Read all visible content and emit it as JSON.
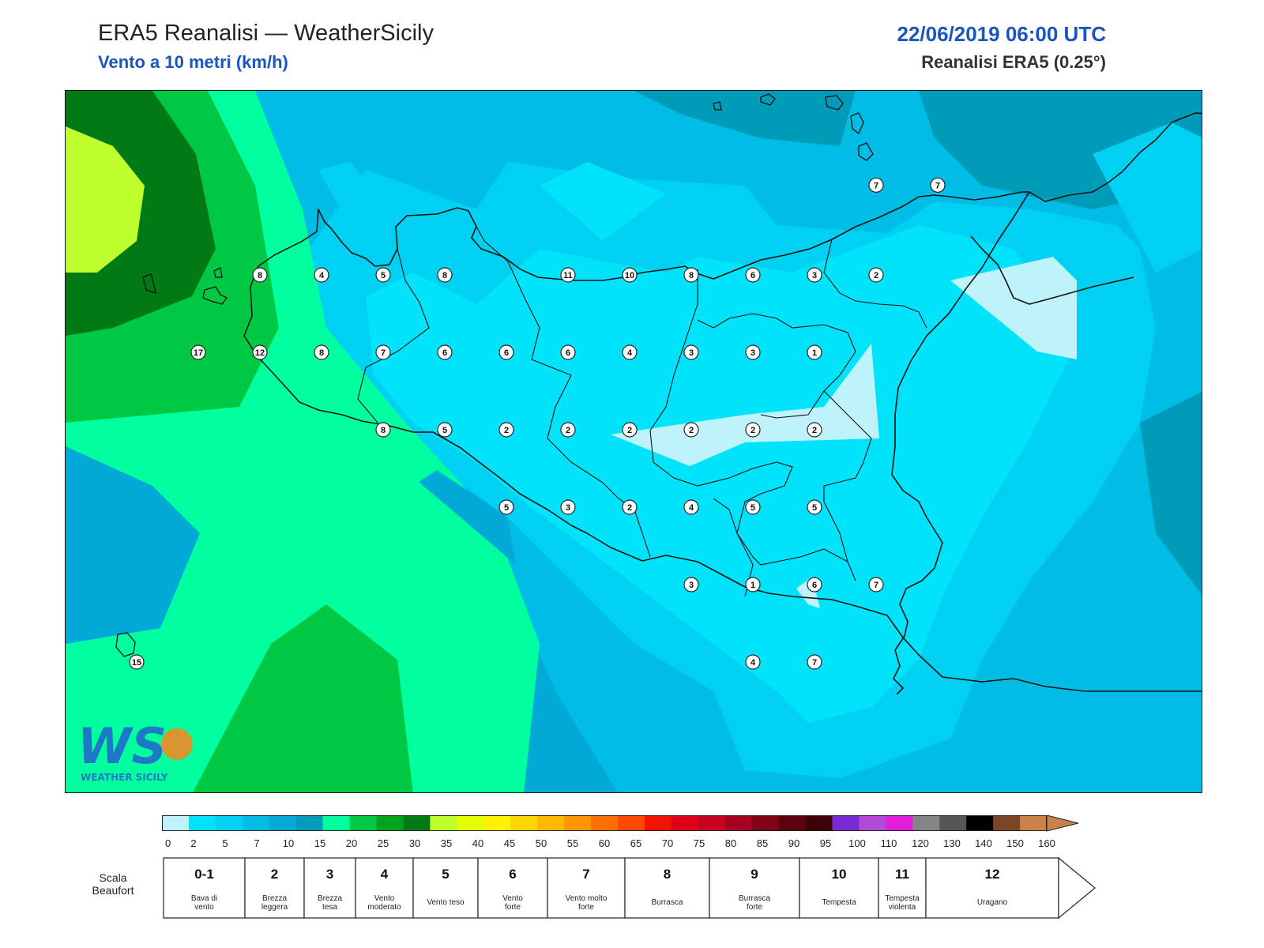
{
  "header": {
    "title": "ERA5 Reanalisi — WeatherSicily",
    "subtitle": "Vento a 10 metri (km/h)",
    "datetime": "22/06/2019 06:00 UTC",
    "source": "Reanalisi ERA5 (0.25°)"
  },
  "stations": [
    {
      "value": "7",
      "lon": 14.98,
      "lat": 38.48
    },
    {
      "value": "7",
      "lon": 15.23,
      "lat": 38.48
    },
    {
      "value": "8",
      "lon": 12.48,
      "lat": 38.19
    },
    {
      "value": "4",
      "lon": 12.73,
      "lat": 38.19
    },
    {
      "value": "5",
      "lon": 12.98,
      "lat": 38.19
    },
    {
      "value": "8",
      "lon": 13.23,
      "lat": 38.19
    },
    {
      "value": "11",
      "lon": 13.73,
      "lat": 38.19
    },
    {
      "value": "10",
      "lon": 13.98,
      "lat": 38.19
    },
    {
      "value": "8",
      "lon": 14.23,
      "lat": 38.19
    },
    {
      "value": "6",
      "lon": 14.48,
      "lat": 38.19
    },
    {
      "value": "3",
      "lon": 14.73,
      "lat": 38.19
    },
    {
      "value": "2",
      "lon": 14.98,
      "lat": 38.19
    },
    {
      "value": "17",
      "lon": 12.23,
      "lat": 37.94
    },
    {
      "value": "12",
      "lon": 12.48,
      "lat": 37.94
    },
    {
      "value": "8",
      "lon": 12.73,
      "lat": 37.94
    },
    {
      "value": "7",
      "lon": 12.98,
      "lat": 37.94
    },
    {
      "value": "6",
      "lon": 13.23,
      "lat": 37.94
    },
    {
      "value": "6",
      "lon": 13.48,
      "lat": 37.94
    },
    {
      "value": "6",
      "lon": 13.73,
      "lat": 37.94
    },
    {
      "value": "4",
      "lon": 13.98,
      "lat": 37.94
    },
    {
      "value": "3",
      "lon": 14.23,
      "lat": 37.94
    },
    {
      "value": "3",
      "lon": 14.48,
      "lat": 37.94
    },
    {
      "value": "1",
      "lon": 14.73,
      "lat": 37.94
    },
    {
      "value": "8",
      "lon": 12.98,
      "lat": 37.69
    },
    {
      "value": "5",
      "lon": 13.23,
      "lat": 37.69
    },
    {
      "value": "2",
      "lon": 13.48,
      "lat": 37.69
    },
    {
      "value": "2",
      "lon": 13.73,
      "lat": 37.69
    },
    {
      "value": "2",
      "lon": 13.98,
      "lat": 37.69
    },
    {
      "value": "2",
      "lon": 14.23,
      "lat": 37.69
    },
    {
      "value": "2",
      "lon": 14.48,
      "lat": 37.69
    },
    {
      "value": "2",
      "lon": 14.73,
      "lat": 37.69
    },
    {
      "value": "5",
      "lon": 13.48,
      "lat": 37.44
    },
    {
      "value": "3",
      "lon": 13.73,
      "lat": 37.44
    },
    {
      "value": "2",
      "lon": 13.98,
      "lat": 37.44
    },
    {
      "value": "4",
      "lon": 14.23,
      "lat": 37.44
    },
    {
      "value": "5",
      "lon": 14.48,
      "lat": 37.44
    },
    {
      "value": "5",
      "lon": 14.73,
      "lat": 37.44
    },
    {
      "value": "3",
      "lon": 14.23,
      "lat": 37.19
    },
    {
      "value": "1",
      "lon": 14.48,
      "lat": 37.19
    },
    {
      "value": "6",
      "lon": 14.73,
      "lat": 37.19
    },
    {
      "value": "7",
      "lon": 14.98,
      "lat": 37.19
    },
    {
      "value": "4",
      "lon": 14.48,
      "lat": 36.94
    },
    {
      "value": "7",
      "lon": 14.73,
      "lat": 36.94
    },
    {
      "value": "15",
      "lon": 11.98,
      "lat": 36.94
    }
  ],
  "colorbar": {
    "ticks": [
      "0",
      "2",
      "5",
      "7",
      "10",
      "15",
      "20",
      "25",
      "30",
      "35",
      "40",
      "45",
      "50",
      "55",
      "60",
      "65",
      "70",
      "75",
      "80",
      "85",
      "90",
      "95",
      "100",
      "110",
      "120",
      "130",
      "140",
      "150",
      "160"
    ],
    "colors": [
      "#bff3fb",
      "#00e3fa",
      "#00d1f2",
      "#00bde6",
      "#00a9d6",
      "#009bb8",
      "#00ff9f",
      "#00c843",
      "#00a31c",
      "#007a14",
      "#bfff2e",
      "#e6ff00",
      "#fff200",
      "#ffd700",
      "#ffb700",
      "#ff9500",
      "#ff6f00",
      "#ff4800",
      "#f11400",
      "#e0001a",
      "#c80022",
      "#a60020",
      "#820016",
      "#5d000e",
      "#3d0006",
      "#7a2ad1",
      "#b24ad6",
      "#e11ed9",
      "#858585",
      "#565656",
      "#000000",
      "#7c4526",
      "#c9824a"
    ]
  },
  "beaufort": {
    "label_line1": "Scala",
    "label_line2": "Beaufort",
    "classes": [
      {
        "num": "0-1",
        "desc1": "Bava di",
        "desc2": "vento"
      },
      {
        "num": "2",
        "desc1": "Brezza",
        "desc2": "leggera"
      },
      {
        "num": "3",
        "desc1": "Brezza",
        "desc2": "tesa"
      },
      {
        "num": "4",
        "desc1": "Vento",
        "desc2": "moderato"
      },
      {
        "num": "5",
        "desc1": "Vento teso",
        "desc2": ""
      },
      {
        "num": "6",
        "desc1": "Vento",
        "desc2": "forte"
      },
      {
        "num": "7",
        "desc1": "Vento molto",
        "desc2": "forte"
      },
      {
        "num": "8",
        "desc1": "Burrasca",
        "desc2": ""
      },
      {
        "num": "9",
        "desc1": "Burrasca",
        "desc2": "forte"
      },
      {
        "num": "10",
        "desc1": "Tempesta",
        "desc2": ""
      },
      {
        "num": "11",
        "desc1": "Tempesta",
        "desc2": "violenta"
      },
      {
        "num": "12",
        "desc1": "Uragano",
        "desc2": ""
      }
    ]
  },
  "logo": {
    "letters": "WS",
    "wordmark": "WEATHER SICILY"
  }
}
